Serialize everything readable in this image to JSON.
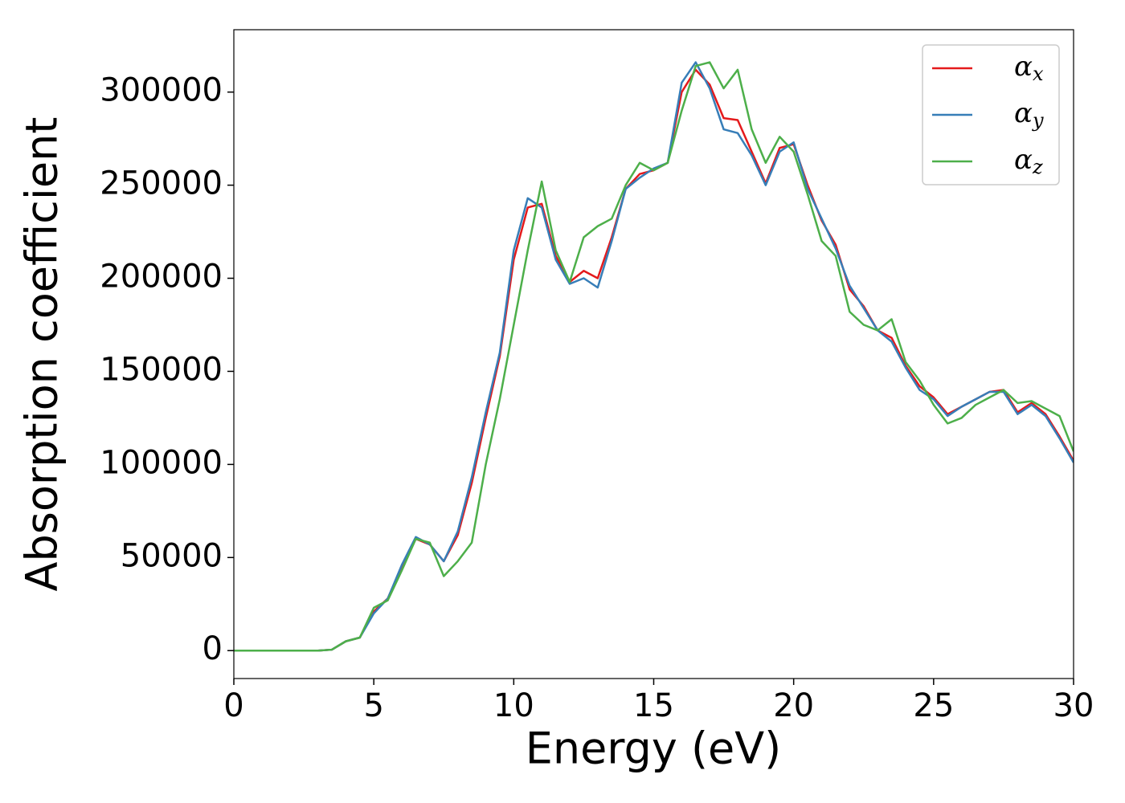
{
  "chart_data": {
    "type": "line",
    "xlabel": "Energy (eV)",
    "ylabel": "Absorption coefficient",
    "x": [
      0,
      0.5,
      1,
      1.5,
      2,
      2.5,
      3,
      3.5,
      4,
      4.5,
      5,
      5.5,
      6,
      6.5,
      7,
      7.5,
      8,
      8.5,
      9,
      9.5,
      10,
      10.5,
      11,
      11.5,
      12,
      12.5,
      13,
      13.5,
      14,
      14.5,
      15,
      15.5,
      16,
      16.5,
      17,
      17.5,
      18,
      18.5,
      19,
      19.5,
      20,
      20.5,
      21,
      21.5,
      22,
      22.5,
      23,
      23.5,
      24,
      24.5,
      25,
      25.5,
      26,
      26.5,
      27,
      27.5,
      28,
      28.5,
      29,
      29.5,
      30
    ],
    "series": [
      {
        "name": "αx",
        "color": "#e41a1c",
        "values": [
          0,
          0,
          0,
          0,
          0,
          0,
          0,
          500,
          5000,
          7000,
          21000,
          28000,
          45000,
          60000,
          57000,
          48000,
          62000,
          90000,
          125000,
          158000,
          210000,
          238000,
          240000,
          212000,
          198000,
          204000,
          200000,
          222000,
          248000,
          256000,
          258000,
          262000,
          300000,
          312000,
          304000,
          286000,
          285000,
          268000,
          251000,
          270000,
          272000,
          250000,
          231000,
          218000,
          194000,
          185000,
          172000,
          168000,
          153000,
          142000,
          136000,
          127000,
          131000,
          135000,
          139000,
          140000,
          128000,
          133000,
          127000,
          115000,
          102000
        ]
      },
      {
        "name": "αy",
        "color": "#377eb8",
        "values": [
          0,
          0,
          0,
          0,
          0,
          0,
          0,
          500,
          5000,
          7000,
          20000,
          28000,
          46000,
          61000,
          57000,
          48000,
          64000,
          93000,
          128000,
          160000,
          215000,
          243000,
          238000,
          210000,
          197000,
          200000,
          195000,
          220000,
          248000,
          254000,
          259000,
          262000,
          305000,
          316000,
          302000,
          280000,
          278000,
          266000,
          250000,
          268000,
          273000,
          248000,
          232000,
          216000,
          196000,
          184000,
          172000,
          166000,
          152000,
          140000,
          135000,
          126000,
          131000,
          135000,
          139000,
          139000,
          127000,
          132000,
          126000,
          114000,
          101000
        ]
      },
      {
        "name": "αz",
        "color": "#4daf4a",
        "values": [
          0,
          0,
          0,
          0,
          0,
          0,
          0,
          500,
          5000,
          7000,
          23000,
          27000,
          43000,
          60000,
          58000,
          40000,
          48000,
          58000,
          100000,
          135000,
          175000,
          215000,
          252000,
          215000,
          198000,
          222000,
          228000,
          232000,
          250000,
          262000,
          258000,
          262000,
          290000,
          314000,
          316000,
          302000,
          312000,
          280000,
          262000,
          276000,
          268000,
          245000,
          220000,
          212000,
          182000,
          175000,
          172000,
          178000,
          155000,
          145000,
          132000,
          122000,
          125000,
          132000,
          136000,
          140000,
          133000,
          134000,
          130000,
          126000,
          107000
        ]
      }
    ],
    "xlim": [
      0,
      30
    ],
    "xticks": [
      0,
      5,
      10,
      15,
      20,
      25,
      30
    ],
    "ylim": [
      -15000,
      333500
    ],
    "yticks": [
      0,
      50000,
      100000,
      150000,
      200000,
      250000,
      300000
    ],
    "grid": false,
    "legend": "upper right"
  }
}
